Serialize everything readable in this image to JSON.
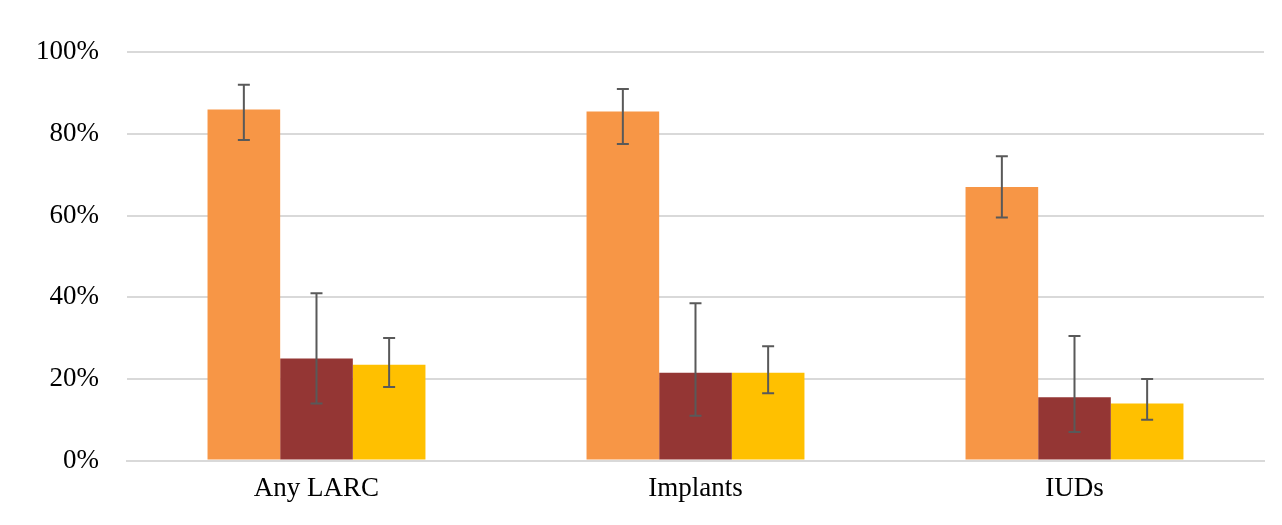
{
  "chart_data": {
    "type": "bar",
    "categories": [
      "Any LARC",
      "Implants",
      "IUDs"
    ],
    "series": [
      {
        "color": "#f79646",
        "values": [
          86,
          85.5,
          67
        ],
        "errors": [
          [
            78.5,
            92
          ],
          [
            77.5,
            91
          ],
          [
            59.5,
            74.5
          ]
        ]
      },
      {
        "color": "#943634",
        "values": [
          25,
          21.5,
          15.5
        ],
        "errors": [
          [
            14,
            41
          ],
          [
            11,
            38.5
          ],
          [
            7,
            30.5
          ]
        ]
      },
      {
        "color": "#ffc000",
        "values": [
          23.5,
          21.5,
          14
        ],
        "errors": [
          [
            18,
            30
          ],
          [
            16.5,
            28
          ],
          [
            10,
            20
          ]
        ]
      }
    ],
    "ylim": [
      0,
      100
    ],
    "yticks": [
      {
        "value": 0,
        "label": "0%"
      },
      {
        "value": 20,
        "label": "20%"
      },
      {
        "value": 40,
        "label": "40%"
      },
      {
        "value": 60,
        "label": "60%"
      },
      {
        "value": 80,
        "label": "80%"
      },
      {
        "value": 100,
        "label": "100%"
      }
    ],
    "grid": "y",
    "legend": false
  }
}
